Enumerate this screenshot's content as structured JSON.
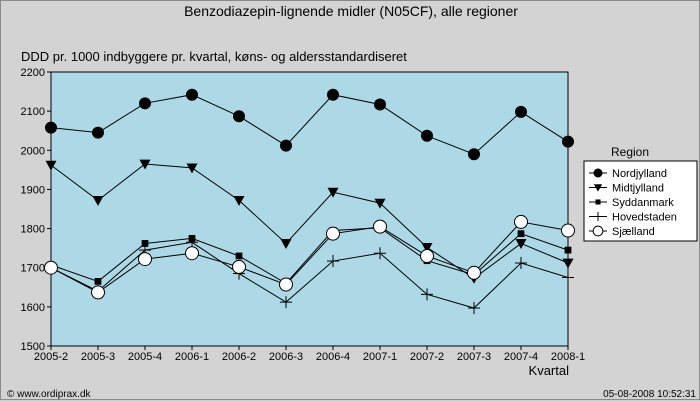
{
  "chart_data": {
    "type": "line",
    "title": "Benzodiazepin-lignende midler (N05CF), alle regioner",
    "subtitle": "DDD pr. 1000 indbyggere pr. kvartal, køns- og aldersstandardiseret",
    "xlabel": "Kvartal",
    "ylabel": "",
    "categories": [
      "2005-2",
      "2005-3",
      "2005-4",
      "2006-1",
      "2006-2",
      "2006-3",
      "2006-4",
      "2007-1",
      "2007-2",
      "2007-3",
      "2007-4",
      "2008-1"
    ],
    "ylim": [
      1500,
      2200
    ],
    "yticks": [
      1500,
      1600,
      1700,
      1800,
      1900,
      2000,
      2100,
      2200
    ],
    "grid": false,
    "plot_background": "#add8e6",
    "legend_title": "Region",
    "legend_position": "right",
    "series": [
      {
        "name": "Nordjylland",
        "marker": "circle-filled",
        "values": [
          2058,
          2045,
          2120,
          2142,
          2087,
          2012,
          2142,
          2117,
          2037,
          1990,
          2098,
          2022
        ]
      },
      {
        "name": "Midtjylland",
        "marker": "triangle-down-filled",
        "values": [
          1962,
          1872,
          1965,
          1955,
          1872,
          1762,
          1893,
          1865,
          1752,
          1673,
          1762,
          1712
        ]
      },
      {
        "name": "Syddanmark",
        "marker": "square-filled",
        "values": [
          1707,
          1665,
          1762,
          1775,
          1730,
          1660,
          1795,
          1802,
          1718,
          1682,
          1787,
          1745
        ]
      },
      {
        "name": "Hovedstaden",
        "marker": "plus",
        "values": [
          1700,
          1640,
          1745,
          1765,
          1685,
          1612,
          1717,
          1737,
          1632,
          1597,
          1712,
          1675
        ]
      },
      {
        "name": "Sjælland",
        "marker": "circle-open",
        "values": [
          1700,
          1637,
          1722,
          1737,
          1702,
          1657,
          1787,
          1805,
          1730,
          1687,
          1817,
          1795
        ]
      }
    ]
  },
  "footer": {
    "left": "© www.ordiprax.dk",
    "right": "05-08-2008 10:52:31"
  }
}
